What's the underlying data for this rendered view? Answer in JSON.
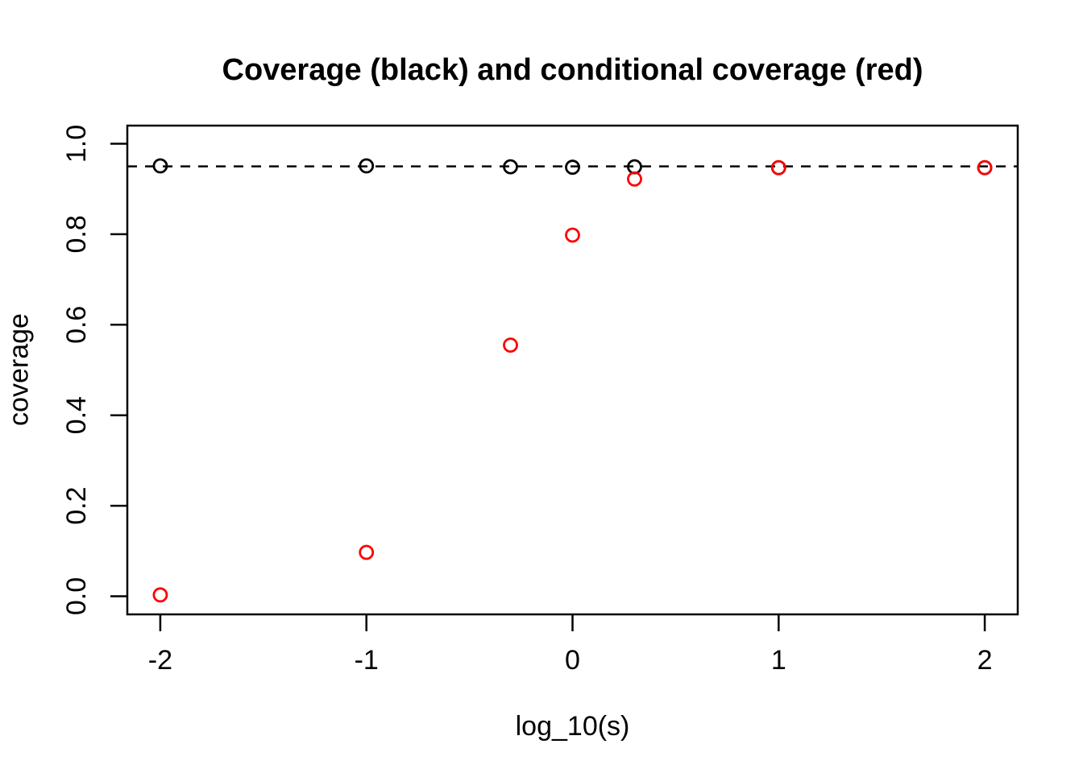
{
  "figure": {
    "background_color": "#FFFFFF",
    "foreground_color": "#000000"
  },
  "chart_data": {
    "type": "scatter",
    "title": "Coverage (black) and conditional coverage (red)",
    "xlabel": "log_10(s)",
    "ylabel": "coverage",
    "xlim": [
      -2.16,
      2.16
    ],
    "ylim": [
      -0.04,
      1.04
    ],
    "x_ticks": [
      -2,
      -1,
      0,
      1,
      2
    ],
    "x_tick_labels": [
      "-2",
      "-1",
      "0",
      "1",
      "2"
    ],
    "y_ticks": [
      0.0,
      0.2,
      0.4,
      0.6,
      0.8,
      1.0
    ],
    "y_tick_labels": [
      "0.0",
      "0.2",
      "0.4",
      "0.6",
      "0.8",
      "1.0"
    ],
    "grid": false,
    "legend_position": "none",
    "reference_line": {
      "y": 0.95,
      "style": "dashed",
      "color": "#000000"
    },
    "series": [
      {
        "name": "coverage",
        "color": "#000000",
        "marker": "open-circle",
        "x": [
          -2,
          -1,
          -0.301,
          0,
          0.301,
          1,
          2
        ],
        "y": [
          0.951,
          0.951,
          0.949,
          0.948,
          0.949,
          0.947,
          0.947
        ]
      },
      {
        "name": "conditional coverage",
        "color": "#FF0000",
        "marker": "open-circle",
        "x": [
          -2,
          -1,
          -0.301,
          0,
          0.301,
          1,
          2
        ],
        "y": [
          0.003,
          0.097,
          0.555,
          0.798,
          0.922,
          0.947,
          0.947
        ]
      }
    ]
  }
}
